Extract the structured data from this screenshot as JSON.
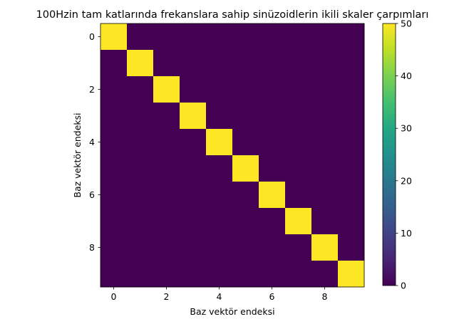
{
  "chart_data": {
    "type": "heatmap",
    "title": "100Hzin tam katlarında frekanslara sahip sinüzoidlerin ikili skaler çarpımları",
    "xlabel": "Baz vektör endeksi",
    "ylabel": "Baz vektör endeksi",
    "rows": 10,
    "cols": 10,
    "values": [
      [
        50,
        0,
        0,
        0,
        0,
        0,
        0,
        0,
        0,
        0
      ],
      [
        0,
        50,
        0,
        0,
        0,
        0,
        0,
        0,
        0,
        0
      ],
      [
        0,
        0,
        50,
        0,
        0,
        0,
        0,
        0,
        0,
        0
      ],
      [
        0,
        0,
        0,
        50,
        0,
        0,
        0,
        0,
        0,
        0
      ],
      [
        0,
        0,
        0,
        0,
        50,
        0,
        0,
        0,
        0,
        0
      ],
      [
        0,
        0,
        0,
        0,
        0,
        50,
        0,
        0,
        0,
        0
      ],
      [
        0,
        0,
        0,
        0,
        0,
        0,
        50,
        0,
        0,
        0
      ],
      [
        0,
        0,
        0,
        0,
        0,
        0,
        0,
        50,
        0,
        0
      ],
      [
        0,
        0,
        0,
        0,
        0,
        0,
        0,
        0,
        50,
        0
      ],
      [
        0,
        0,
        0,
        0,
        0,
        0,
        0,
        0,
        0,
        50
      ]
    ],
    "xticks": [
      "0",
      "2",
      "4",
      "6",
      "8"
    ],
    "xtick_values": [
      0,
      2,
      4,
      6,
      8
    ],
    "yticks": [
      "0",
      "2",
      "4",
      "6",
      "8"
    ],
    "ytick_values": [
      0,
      2,
      4,
      6,
      8
    ],
    "colormap": "viridis",
    "colorbar": {
      "range": [
        0,
        50
      ],
      "ticks": [
        "0",
        "10",
        "20",
        "30",
        "40",
        "50"
      ],
      "tick_values": [
        0,
        10,
        20,
        30,
        40,
        50
      ]
    },
    "colors": {
      "low": "#440154",
      "high": "#fde725"
    },
    "grid": false,
    "legend": "none"
  }
}
